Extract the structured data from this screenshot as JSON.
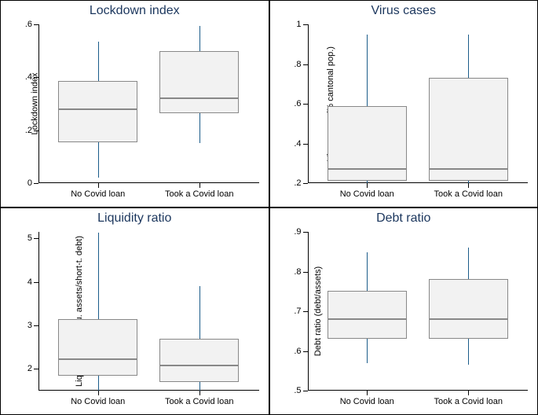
{
  "background_color": "#ffffff",
  "title_color": "#1b365d",
  "title_fontsize": 16,
  "label_fontsize": 11,
  "box_fill": "#f2f2f2",
  "box_border": "#888888",
  "median_color": "#888888",
  "whisker_color": "#1b5c8a",
  "axis_color": "#000000",
  "panels": [
    {
      "title": "Lockdown index",
      "ylabel": "Lockdown index",
      "ylim": [
        0,
        0.6
      ],
      "yticks": [
        0,
        0.2,
        0.4,
        0.6
      ],
      "ytick_labels": [
        "0",
        ".2",
        ".4",
        ".6"
      ],
      "categories": [
        "No Covid loan",
        "Took a Covid loan"
      ],
      "boxes": [
        {
          "q1": 0.155,
          "median": 0.28,
          "q3": 0.385,
          "wlow": 0.02,
          "whigh": 0.535
        },
        {
          "q1": 0.265,
          "median": 0.32,
          "q3": 0.5,
          "wlow": 0.15,
          "whigh": 0.595
        }
      ]
    },
    {
      "title": "Virus cases",
      "ylabel": "Virus cases (% cantonal pop.)",
      "ylim": [
        0.2,
        1.0
      ],
      "yticks": [
        0.2,
        0.4,
        0.6,
        0.8,
        1.0
      ],
      "ytick_labels": [
        ".2",
        ".4",
        ".6",
        ".8",
        "1"
      ],
      "categories": [
        "No Covid loan",
        "Took a Covid loan"
      ],
      "boxes": [
        {
          "q1": 0.21,
          "median": 0.27,
          "q3": 0.59,
          "wlow": 0.2,
          "whigh": 0.95
        },
        {
          "q1": 0.21,
          "median": 0.27,
          "q3": 0.73,
          "wlow": 0.2,
          "whigh": 0.95
        }
      ]
    },
    {
      "title": "Liquidity ratio",
      "ylabel": "Liquidity ratio (liqu. assets/short-t. debt)",
      "ylim": [
        1.5,
        5.15
      ],
      "yticks": [
        2,
        3,
        4,
        5
      ],
      "ytick_labels": [
        "2",
        "3",
        "4",
        "5"
      ],
      "categories": [
        "No Covid loan",
        "Took a Covid loan"
      ],
      "boxes": [
        {
          "q1": 1.85,
          "median": 2.22,
          "q3": 3.15,
          "wlow": 1.5,
          "whigh": 5.13
        },
        {
          "q1": 1.7,
          "median": 2.08,
          "q3": 2.7,
          "wlow": 1.5,
          "whigh": 3.9
        }
      ]
    },
    {
      "title": "Debt ratio",
      "ylabel": "Debt ratio (debt/assets)",
      "ylim": [
        0.5,
        0.9
      ],
      "yticks": [
        0.5,
        0.6,
        0.7,
        0.8,
        0.9
      ],
      "ytick_labels": [
        ".5",
        ".6",
        ".7",
        ".8",
        ".9"
      ],
      "categories": [
        "No Covid loan",
        "Took a Covid loan"
      ],
      "boxes": [
        {
          "q1": 0.63,
          "median": 0.68,
          "q3": 0.752,
          "wlow": 0.57,
          "whigh": 0.848
        },
        {
          "q1": 0.63,
          "median": 0.68,
          "q3": 0.782,
          "wlow": 0.565,
          "whigh": 0.86
        }
      ]
    }
  ],
  "box_rel_width": 0.36,
  "x_positions": [
    0.27,
    0.73
  ]
}
